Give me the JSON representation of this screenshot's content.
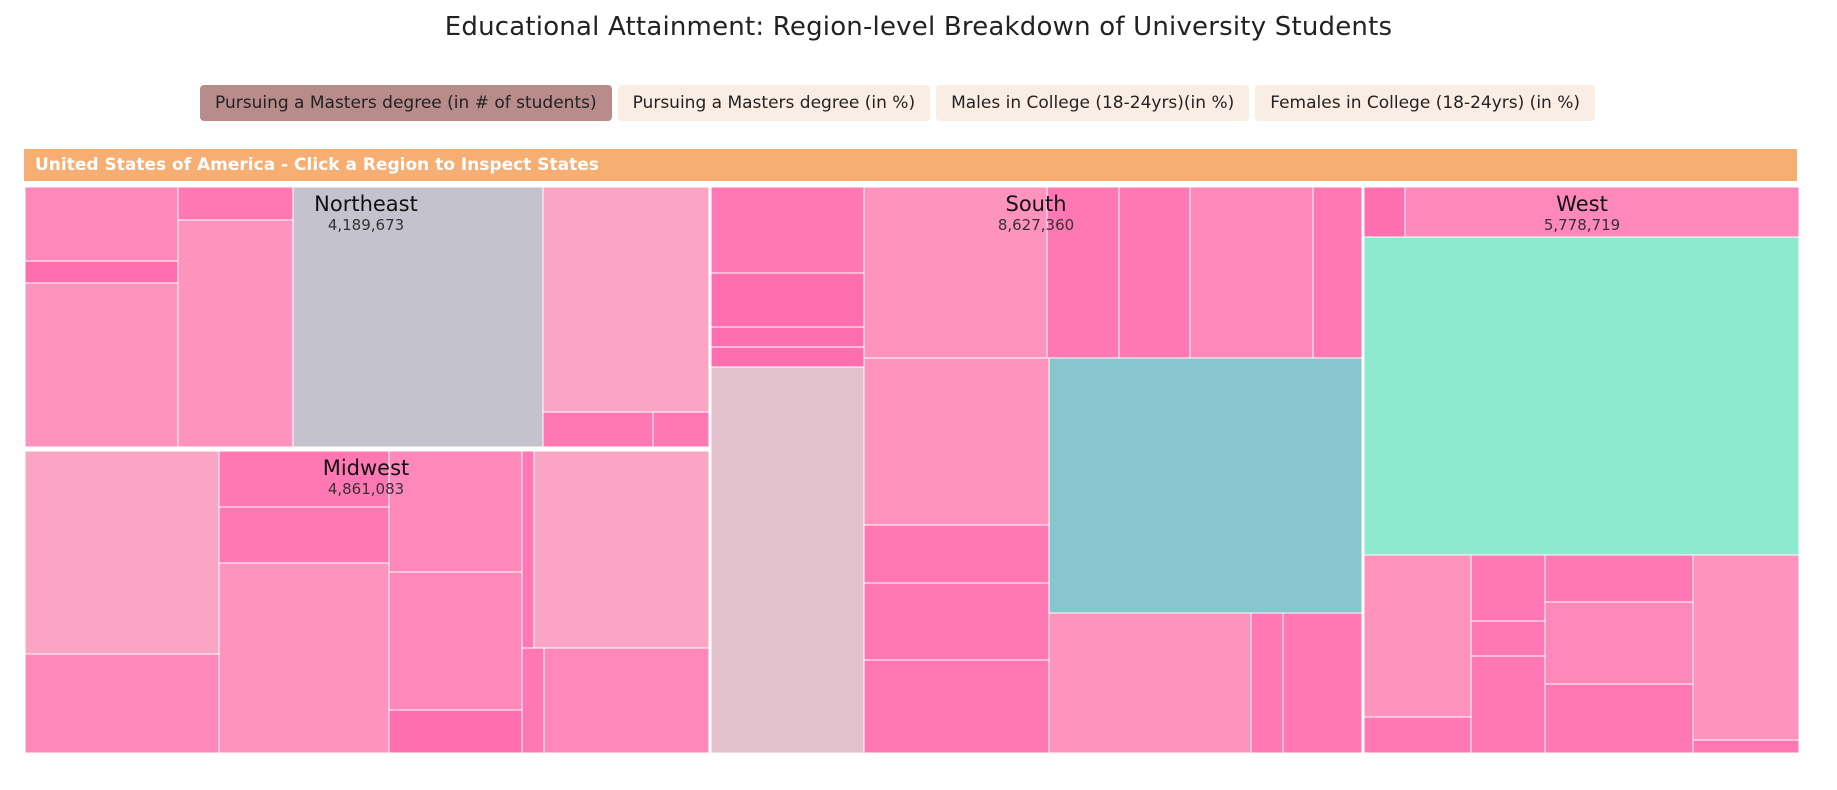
{
  "title": "Educational Attainment: Region-level Breakdown of University Students",
  "metric_buttons": [
    {
      "label": "Pursuing a Masters degree (in # of students)",
      "active": true
    },
    {
      "label": "Pursuing a Masters degree (in %)",
      "active": false
    },
    {
      "label": "Males in College (18-24yrs)(in %)",
      "active": false
    },
    {
      "label": "Females in College (18-24yrs) (in %)",
      "active": false
    }
  ],
  "breadcrumb": "United States of America - Click a Region to Inspect States",
  "colors": {
    "active_button": "#b98c8c",
    "inactive_button": "#faeee4",
    "breadcrumb": "#f7ae72",
    "state_fill_range": [
      "#ff72b4",
      "#fca6c6"
    ],
    "highlight_grey": "#c4c2cc",
    "highlight_teal": "#86c6cd",
    "highlight_mint": "#8deacf",
    "highlight_pale_pink": "#e3c1cd"
  },
  "chart_data": {
    "type": "treemap",
    "metric": "Pursuing a Masters degree (in # of students)",
    "regions": [
      {
        "name": "Northeast",
        "value": 4189673,
        "value_label": "4,189,673"
      },
      {
        "name": "Midwest",
        "value": 4861083,
        "value_label": "4,861,083"
      },
      {
        "name": "South",
        "value": 8627360,
        "value_label": "8,627,360"
      },
      {
        "name": "West",
        "value": 5778719,
        "value_label": "5,778,719"
      }
    ]
  }
}
